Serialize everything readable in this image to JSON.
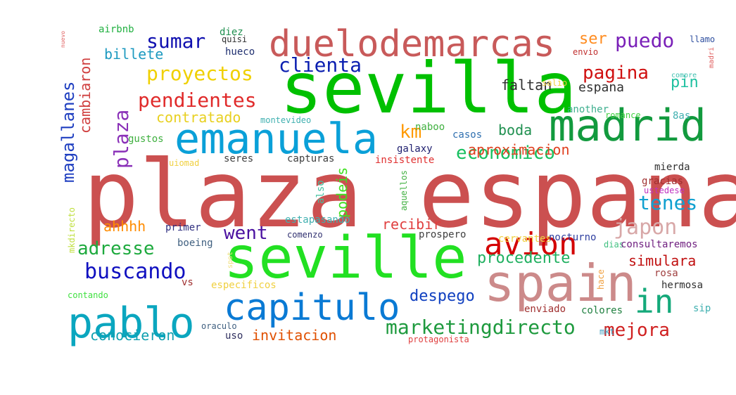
{
  "words": [
    {
      "text": "plaza espana",
      "color": "#cb5050"
    },
    {
      "text": "sevilla",
      "color": "#00c000"
    },
    {
      "text": "seville",
      "color": "#22e022"
    },
    {
      "text": "spain",
      "color": "#cc8a8a"
    },
    {
      "text": "madrid",
      "color": "#129a3e"
    },
    {
      "text": "emanuela",
      "color": "#0aa0d8"
    },
    {
      "text": "pablo",
      "color": "#0aa6bf"
    },
    {
      "text": "capitulo",
      "color": "#0a7ad4"
    },
    {
      "text": "duelodemarcas",
      "color": "#c85a5a"
    },
    {
      "text": "avion",
      "color": "#d40000"
    },
    {
      "text": "in",
      "color": "#14a97a"
    },
    {
      "text": "marketingdirecto",
      "color": "#1e9a3e"
    },
    {
      "text": "proyectos",
      "color": "#f0d000"
    },
    {
      "text": "pendientes",
      "color": "#e02a2a"
    },
    {
      "text": "clienta",
      "color": "#0a1eb0"
    },
    {
      "text": "economico",
      "color": "#18c060"
    },
    {
      "text": "plaza",
      "color": "#8a30b8"
    },
    {
      "text": "km",
      "color": "#ff9a00"
    },
    {
      "text": "magallanes",
      "color": "#1e3ec0"
    },
    {
      "text": "sumar",
      "color": "#1010b0"
    },
    {
      "text": "puedo",
      "color": "#7a20b8"
    },
    {
      "text": "pagina",
      "color": "#d01010"
    },
    {
      "text": "japon",
      "color": "#d8a8a8"
    },
    {
      "text": "went",
      "color": "#4a10a0"
    },
    {
      "text": "adresse",
      "color": "#1eaa3e"
    },
    {
      "text": "buscando",
      "color": "#1010c0"
    },
    {
      "text": "tenes",
      "color": "#10a0d0"
    },
    {
      "text": "mejora",
      "color": "#d02020"
    },
    {
      "text": "billete",
      "color": "#1e9ac0"
    },
    {
      "text": "cambiaron",
      "color": "#d04040"
    },
    {
      "text": "contratado",
      "color": "#e8d020"
    },
    {
      "text": "podeis",
      "color": "#40e020"
    },
    {
      "text": "procedente",
      "color": "#20b060"
    },
    {
      "text": "conocieron",
      "color": "#10a0b0"
    },
    {
      "text": "despego",
      "color": "#1040c0"
    },
    {
      "text": "invitacion",
      "color": "#e05000"
    },
    {
      "text": "aproximacion",
      "color": "#e04020"
    },
    {
      "text": "faltan",
      "color": "#303030"
    },
    {
      "text": "espana",
      "color": "#303030"
    },
    {
      "text": "boda",
      "color": "#209050"
    },
    {
      "text": "recibir",
      "color": "#e04040"
    },
    {
      "text": "simulara",
      "color": "#c01010"
    },
    {
      "text": "ahhhh",
      "color": "#ff8c00"
    },
    {
      "text": "ser",
      "color": "#ff8c20"
    },
    {
      "text": "pin",
      "color": "#1ec0a0"
    },
    {
      "text": "mkdirecto",
      "color": "#c0e040"
    },
    {
      "text": "airbnb",
      "color": "#20b040"
    },
    {
      "text": "diez",
      "color": "#209050"
    },
    {
      "text": "quisi",
      "color": "#303030"
    },
    {
      "text": "hueco",
      "color": "#203070"
    },
    {
      "text": "gustos",
      "color": "#40b040"
    },
    {
      "text": "montevideo",
      "color": "#40b0b0"
    },
    {
      "text": "naboo",
      "color": "#40b040"
    },
    {
      "text": "casos",
      "color": "#3070b0"
    },
    {
      "text": "galaxy",
      "color": "#202070"
    },
    {
      "text": "seres",
      "color": "#404040"
    },
    {
      "text": "capturas",
      "color": "#404040"
    },
    {
      "text": "insistente",
      "color": "#e03030"
    },
    {
      "text": "uiomad",
      "color": "#f0d040"
    },
    {
      "text": "also",
      "color": "#40c0a0"
    },
    {
      "text": "aquellos",
      "color": "#40b040"
    },
    {
      "text": "estapasando",
      "color": "#40b0b0"
    },
    {
      "text": "comenzo",
      "color": "#303070"
    },
    {
      "text": "primer",
      "color": "#303080"
    },
    {
      "text": "boeing",
      "color": "#406080"
    },
    {
      "text": "cervantes",
      "color": "#f0d040"
    },
    {
      "text": "nocturno",
      "color": "#3040a0"
    },
    {
      "text": "prospero",
      "color": "#404040"
    },
    {
      "text": "dias",
      "color": "#40c080"
    },
    {
      "text": "consultaremos",
      "color": "#702080"
    },
    {
      "text": "gracias",
      "color": "#a03030"
    },
    {
      "text": "ustedese",
      "color": "#c030c0"
    },
    {
      "text": "mierda",
      "color": "#303030"
    },
    {
      "text": "rosa",
      "color": "#a04040"
    },
    {
      "text": "hace",
      "color": "#f0a040"
    },
    {
      "text": "hermosa",
      "color": "#303030"
    },
    {
      "text": "enviado",
      "color": "#a03030"
    },
    {
      "text": "colores",
      "color": "#208040"
    },
    {
      "text": "sip",
      "color": "#40b0b0"
    },
    {
      "text": "mkt",
      "color": "#40a0c0"
    },
    {
      "text": "oraculo",
      "color": "#406080"
    },
    {
      "text": "uso",
      "color": "#303060"
    },
    {
      "text": "protagonista",
      "color": "#e04040"
    },
    {
      "text": "contando",
      "color": "#40e040"
    },
    {
      "text": "especificos",
      "color": "#f0d040"
    },
    {
      "text": "spot",
      "color": "#f0e080"
    },
    {
      "text": "vs",
      "color": "#a03030"
    },
    {
      "text": "another",
      "color": "#40b090"
    },
    {
      "text": "romance",
      "color": "#40d040"
    },
    {
      "text": "8as",
      "color": "#40b0b0"
    },
    {
      "text": "salio",
      "color": "#f0d040"
    },
    {
      "text": "compre",
      "color": "#40c0b0"
    },
    {
      "text": "madri",
      "color": "#e06060"
    },
    {
      "text": "envio",
      "color": "#c03030"
    },
    {
      "text": "llamo",
      "color": "#3050a0"
    },
    {
      "text": "nuevo",
      "color": "#e06060"
    }
  ]
}
